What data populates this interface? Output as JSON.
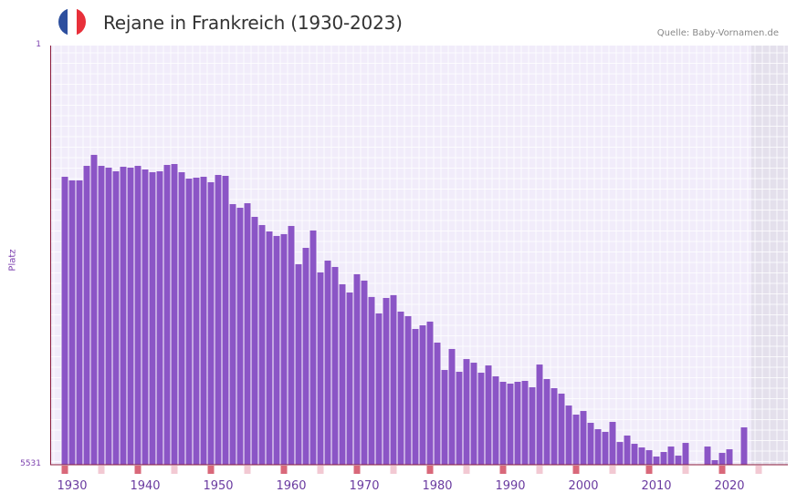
{
  "header": {
    "title": "Rejane in Frankreich (1930-2023)",
    "source": "Quelle: Baby-Vornamen.de",
    "flag_colors": [
      "#2d4f9e",
      "#ffffff",
      "#e8303a"
    ]
  },
  "colors": {
    "bar": "#8b55c6",
    "grid_bg": "#f1ecfa",
    "grid_line": "#ffffff",
    "future_bg": "#e4e0ec",
    "axis": "#8b1a3a",
    "decade_marker": "#d9687a",
    "minor_marker": "#f2c9d3"
  },
  "chart_data": {
    "type": "bar",
    "title": "Rejane in Frankreich (1930-2023)",
    "xlabel": "",
    "ylabel": "Platz",
    "y_inverted": true,
    "ylim": [
      1,
      5531
    ],
    "yticks": [
      "1",
      "5531"
    ],
    "xticks": [
      "1930",
      "1940",
      "1950",
      "1960",
      "1970",
      "1980",
      "1990",
      "2000",
      "2010",
      "2020"
    ],
    "grid": true,
    "x": [
      1929,
      1930,
      1931,
      1932,
      1933,
      1934,
      1935,
      1936,
      1937,
      1938,
      1939,
      1940,
      1941,
      1942,
      1943,
      1944,
      1945,
      1946,
      1947,
      1948,
      1949,
      1950,
      1951,
      1952,
      1953,
      1954,
      1955,
      1956,
      1957,
      1958,
      1959,
      1960,
      1961,
      1962,
      1963,
      1964,
      1965,
      1966,
      1967,
      1968,
      1969,
      1970,
      1971,
      1972,
      1973,
      1974,
      1975,
      1976,
      1977,
      1978,
      1979,
      1980,
      1981,
      1982,
      1983,
      1984,
      1985,
      1986,
      1987,
      1988,
      1989,
      1990,
      1991,
      1992,
      1993,
      1994,
      1995,
      1996,
      1997,
      1998,
      1999,
      2000,
      2001,
      2002,
      2003,
      2004,
      2005,
      2006,
      2007,
      2008,
      2009,
      2010,
      2011,
      2012,
      2013,
      2014,
      2015,
      2016,
      2017,
      2018,
      2019,
      2020,
      2021,
      2022
    ],
    "values": [
      1732,
      1780,
      1780,
      1588,
      1443,
      1588,
      1612,
      1660,
      1600,
      1612,
      1588,
      1636,
      1672,
      1660,
      1576,
      1564,
      1672,
      1756,
      1744,
      1732,
      1804,
      1708,
      1720,
      2093,
      2141,
      2081,
      2261,
      2369,
      2453,
      2513,
      2489,
      2381,
      2886,
      2670,
      2441,
      2994,
      2838,
      2922,
      3150,
      3259,
      3018,
      3102,
      3318,
      3535,
      3331,
      3294,
      3511,
      3571,
      3740,
      3692,
      3643,
      3920,
      4281,
      4004,
      4305,
      4137,
      4185,
      4317,
      4221,
      4365,
      4437,
      4461,
      4437,
      4425,
      4509,
      4209,
      4401,
      4521,
      4593,
      4750,
      4870,
      4822,
      4978,
      5062,
      5098,
      4966,
      5231,
      5146,
      5255,
      5303,
      5339,
      5423,
      5363,
      5291,
      5411,
      5243,
      5531,
      5531,
      5291,
      5471,
      5375,
      5327,
      5531,
      5038
    ]
  }
}
